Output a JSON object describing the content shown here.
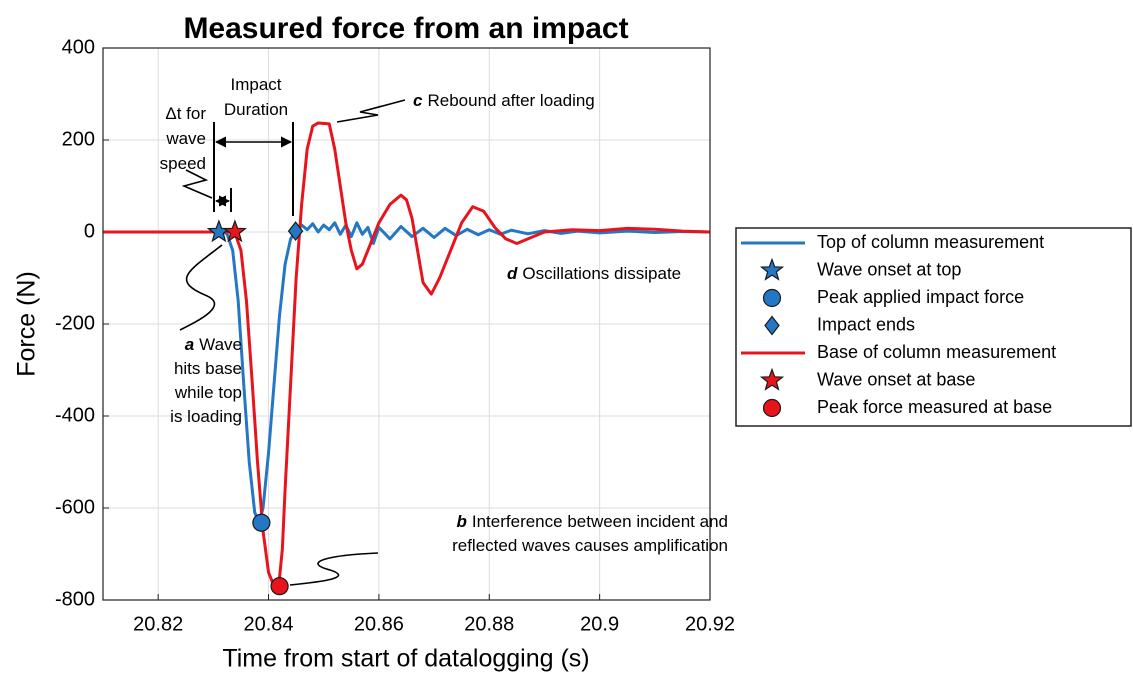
{
  "chart_data": {
    "type": "line",
    "title": "Measured force from an impact",
    "x_label": "Time from start of datalogging (s)",
    "y_label": "Force (N)",
    "xlim": [
      20.81,
      20.92
    ],
    "ylim": [
      -800,
      400
    ],
    "xticks": [
      20.82,
      20.84,
      20.86,
      20.88,
      20.9,
      20.92
    ],
    "yticks": [
      -800,
      -600,
      -400,
      -200,
      0,
      200,
      400
    ],
    "grid": true,
    "legend": "right",
    "series": [
      {
        "name": "Top of column measurement",
        "color": "#2377c4",
        "x": [
          20.81,
          20.832,
          20.8325,
          20.8335,
          20.8345,
          20.8355,
          20.8365,
          20.8375,
          20.8383,
          20.839,
          20.84,
          20.841,
          20.842,
          20.843,
          20.844,
          20.8449,
          20.846,
          20.847,
          20.848,
          20.849,
          20.85,
          20.851,
          20.852,
          20.853,
          20.854,
          20.855,
          20.856,
          20.857,
          20.858,
          20.859,
          20.86,
          20.862,
          20.864,
          20.866,
          20.868,
          20.87,
          20.872,
          20.874,
          20.876,
          20.878,
          20.88,
          20.882,
          20.884,
          20.887,
          20.89,
          20.893,
          20.896,
          20.9,
          20.905,
          20.91,
          20.915,
          20.92
        ],
        "values": [
          0,
          0,
          -5,
          -40,
          -150,
          -330,
          -500,
          -610,
          -632,
          -600,
          -480,
          -330,
          -180,
          -70,
          -15,
          2,
          15,
          5,
          18,
          0,
          15,
          5,
          20,
          -5,
          15,
          -10,
          20,
          -5,
          10,
          -25,
          10,
          -15,
          12,
          -10,
          8,
          -12,
          8,
          -8,
          6,
          -6,
          5,
          -5,
          4,
          -4,
          3,
          -3,
          2,
          -2,
          2,
          -1,
          1,
          0
        ]
      },
      {
        "name": "Wave onset at top",
        "color": "#2377c4",
        "marker": "star",
        "x": [
          20.831
        ],
        "values": [
          0
        ]
      },
      {
        "name": "Peak applied impact force",
        "color": "#2377c4",
        "marker": "circle",
        "x": [
          20.8387
        ],
        "values": [
          -632
        ]
      },
      {
        "name": "Impact ends",
        "color": "#2377c4",
        "marker": "diamond",
        "x": [
          20.8449
        ],
        "values": [
          2
        ]
      },
      {
        "name": "Base of column measurement",
        "color": "#e8141c",
        "x": [
          20.81,
          20.8335,
          20.834,
          20.835,
          20.836,
          20.837,
          20.838,
          20.839,
          20.84,
          20.841,
          20.842,
          20.8425,
          20.843,
          20.844,
          20.845,
          20.846,
          20.847,
          20.848,
          20.849,
          20.851,
          20.852,
          20.853,
          20.854,
          20.855,
          20.856,
          20.857,
          20.858,
          20.86,
          20.862,
          20.864,
          20.865,
          20.866,
          20.867,
          20.868,
          20.8695,
          20.871,
          20.873,
          20.875,
          20.877,
          20.879,
          20.881,
          20.883,
          20.885,
          20.887,
          20.89,
          20.895,
          20.9,
          20.905,
          20.91,
          20.915,
          20.92
        ],
        "values": [
          0,
          0,
          -5,
          -40,
          -150,
          -320,
          -500,
          -650,
          -740,
          -770,
          -750,
          -690,
          -560,
          -330,
          -100,
          60,
          180,
          230,
          237,
          235,
          180,
          100,
          20,
          -40,
          -80,
          -70,
          -40,
          20,
          60,
          80,
          70,
          30,
          -40,
          -110,
          -135,
          -100,
          -40,
          20,
          55,
          45,
          10,
          -15,
          -25,
          -15,
          0,
          5,
          3,
          8,
          6,
          2,
          0
        ]
      },
      {
        "name": "Wave onset at base",
        "color": "#e8141c",
        "marker": "star",
        "x": [
          20.8339
        ],
        "values": [
          0
        ]
      },
      {
        "name": "Peak force measured at base",
        "color": "#e8141c",
        "marker": "circle",
        "x": [
          20.842
        ],
        "values": [
          -770
        ]
      }
    ],
    "annotations": [
      {
        "lines": [
          "Δt for",
          "wave",
          "speed"
        ]
      },
      {
        "lines": [
          "Impact",
          "Duration"
        ]
      },
      {
        "letter": "c",
        "lines": [
          "Rebound after loading"
        ]
      },
      {
        "letter": "d",
        "lines": [
          "Oscillations dissipate"
        ]
      },
      {
        "letter": "a",
        "lines": [
          "Wave",
          "hits base",
          "while top",
          "is loading"
        ]
      },
      {
        "letter": "b",
        "lines": [
          "Interference between incident and",
          "reflected waves causes amplification"
        ]
      }
    ]
  }
}
